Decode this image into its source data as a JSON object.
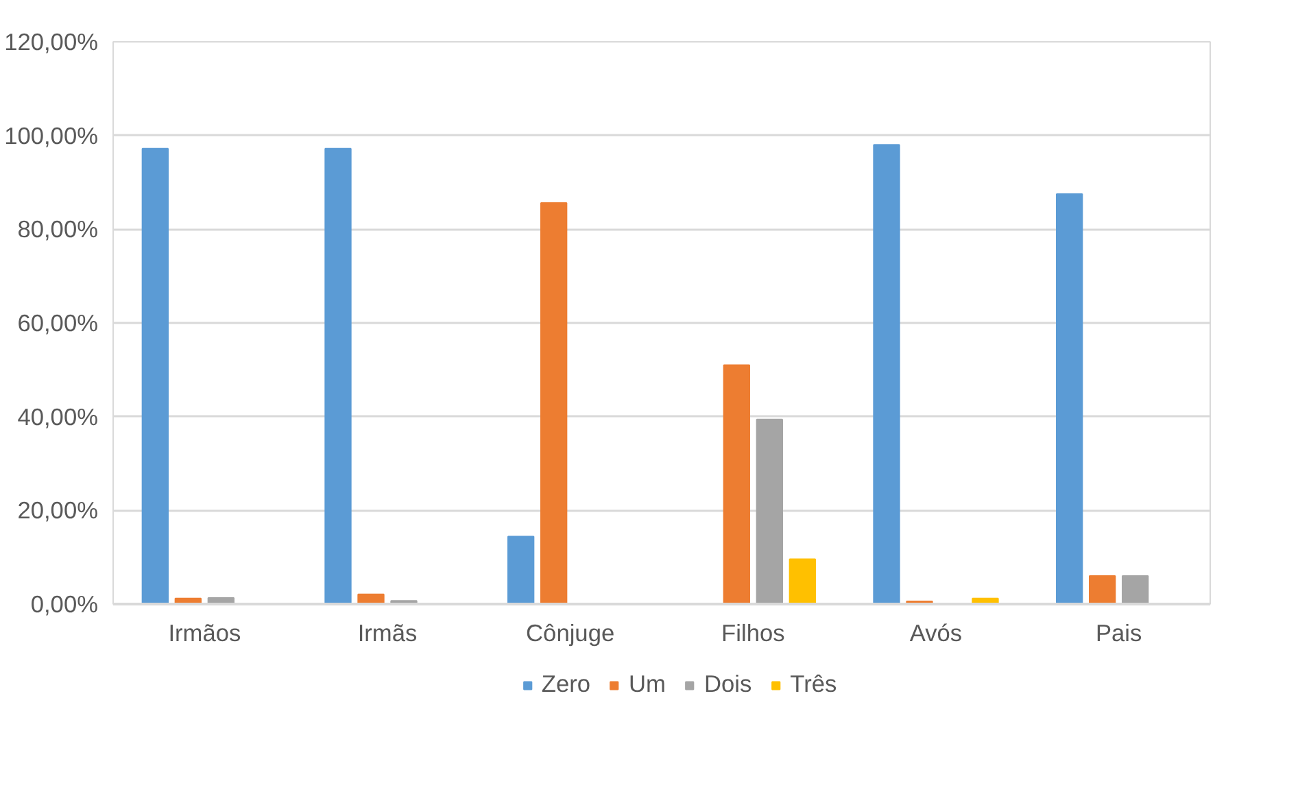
{
  "chart_data": {
    "type": "bar",
    "categories": [
      "Irmãos",
      "Irmãs",
      "Cônjuge",
      "Filhos",
      "Avós",
      "Pais"
    ],
    "series": [
      {
        "name": "Zero",
        "color": "#5b9bd5",
        "values": [
          97.2,
          97.2,
          14.4,
          0,
          98.0,
          87.5
        ]
      },
      {
        "name": "Um",
        "color": "#ed7d31",
        "values": [
          1.2,
          2.1,
          85.6,
          51.0,
          0.6,
          6.0
        ]
      },
      {
        "name": "Dois",
        "color": "#a5a5a5",
        "values": [
          1.3,
          0.7,
          0,
          39.4,
          0,
          6.0
        ]
      },
      {
        "name": "Três",
        "color": "#ffc000",
        "values": [
          0,
          0,
          0,
          9.6,
          1.2,
          0
        ]
      }
    ],
    "ylim": [
      0,
      120
    ],
    "yticks": [
      {
        "value": 0,
        "label": "0,00%"
      },
      {
        "value": 20,
        "label": "20,00%"
      },
      {
        "value": 40,
        "label": "40,00%"
      },
      {
        "value": 60,
        "label": "60,00%"
      },
      {
        "value": 80,
        "label": "80,00%"
      },
      {
        "value": 100,
        "label": "100,00%"
      },
      {
        "value": 120,
        "label": "120,00%"
      }
    ],
    "grid": "y",
    "legend": "bottom"
  }
}
